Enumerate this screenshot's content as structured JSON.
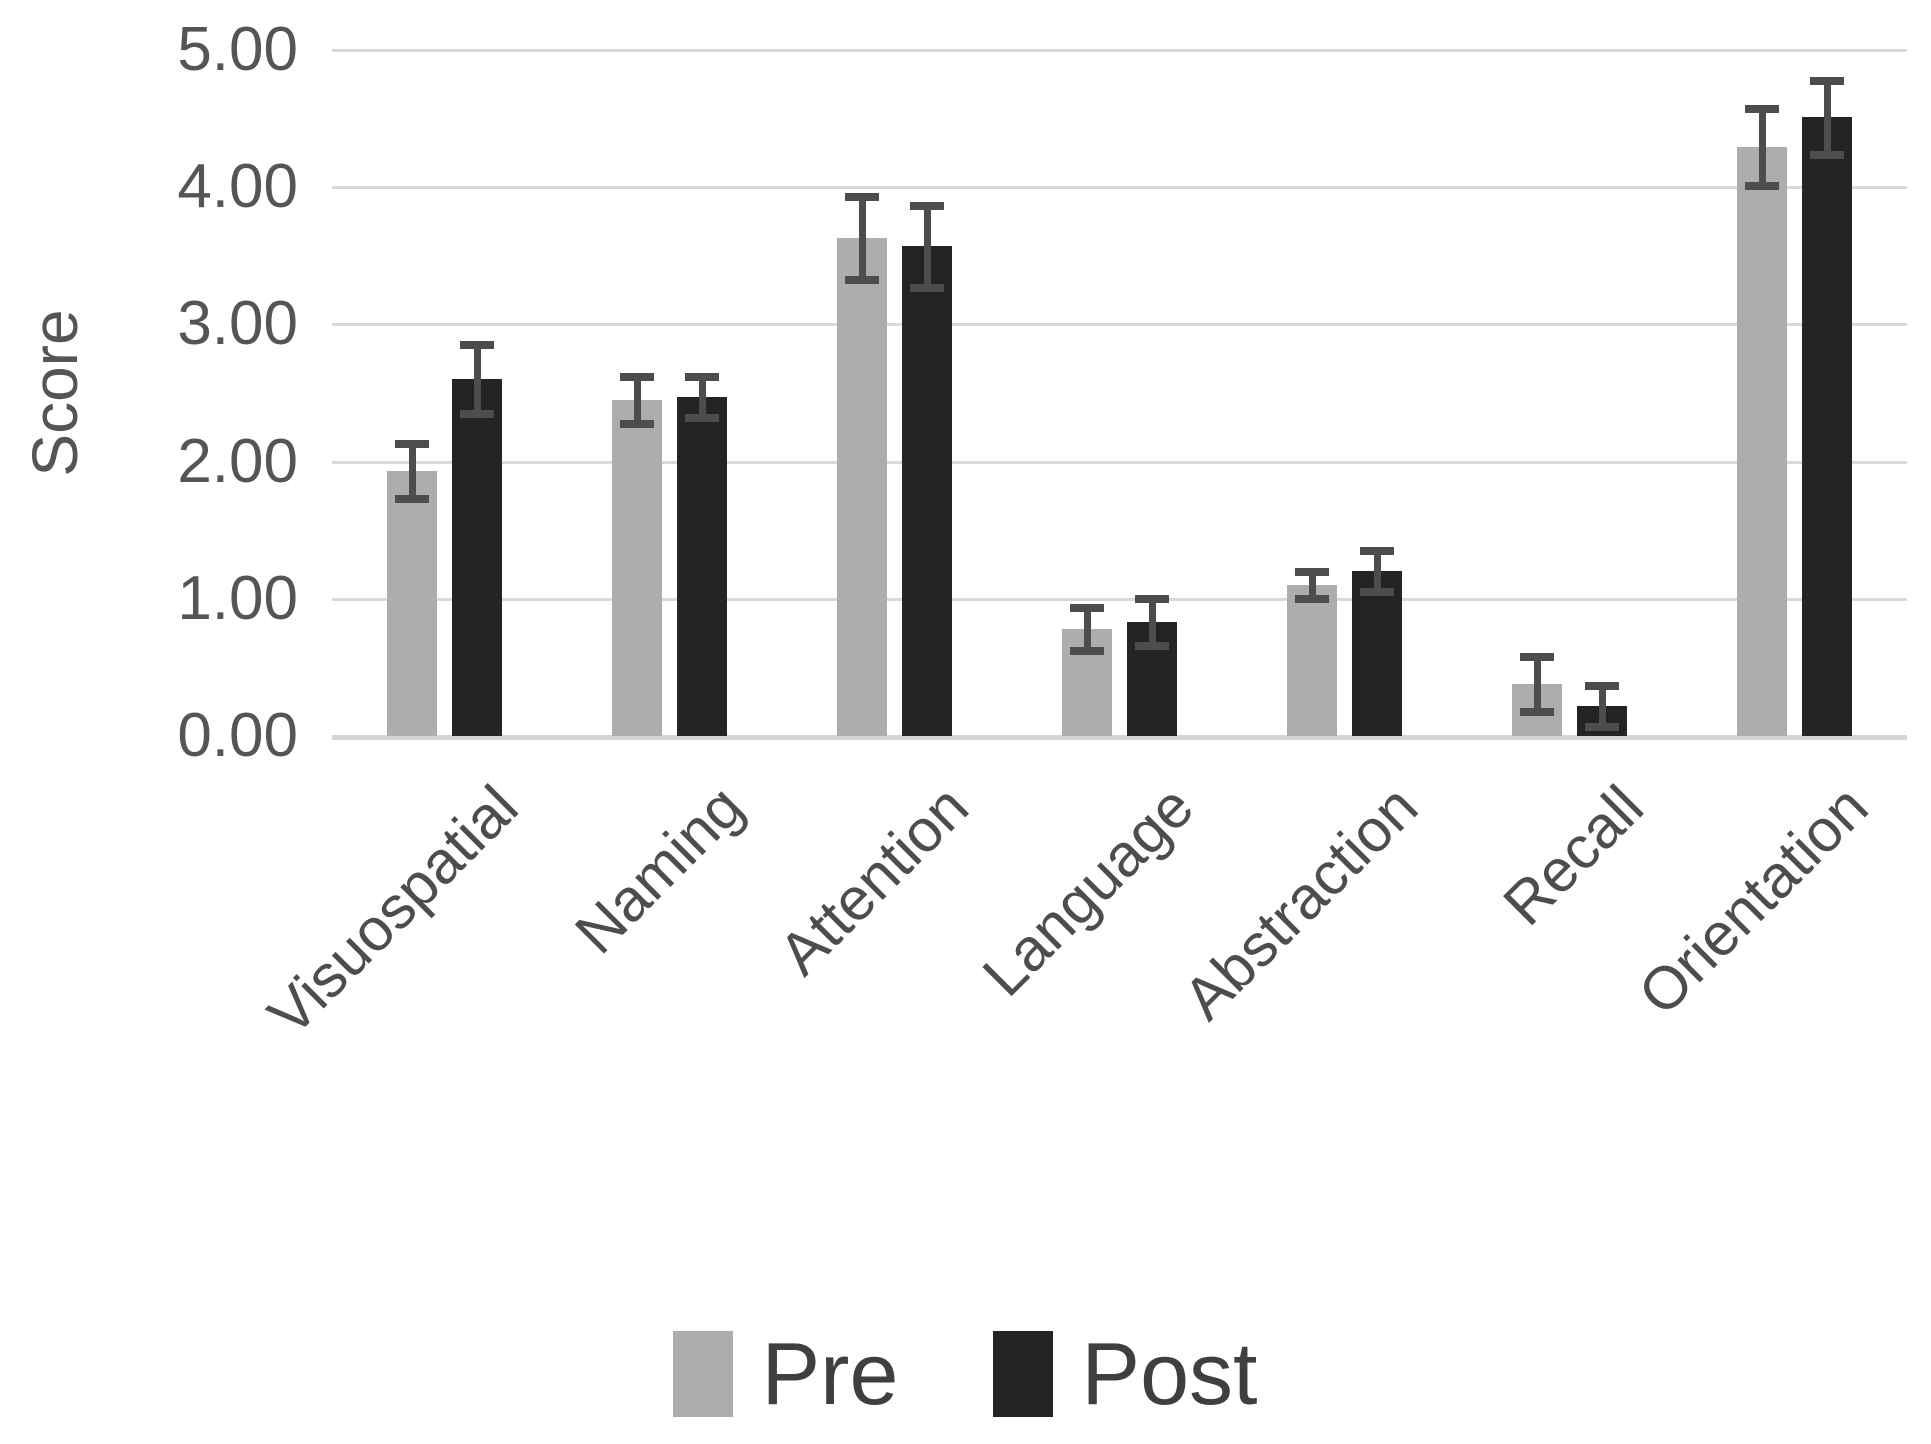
{
  "chart_data": {
    "type": "bar",
    "title": "",
    "xlabel": "",
    "ylabel": "Score",
    "ylim": [
      0,
      5
    ],
    "ytick_step": 1,
    "yticks": [
      "5.00",
      "4.00",
      "3.00",
      "2.00",
      "1.00",
      "0.00"
    ],
    "grid": "horizontal",
    "legend_position": "bottom",
    "categories": [
      "Visuospatial",
      "Naming",
      "Attention",
      "Language",
      "Abstraction",
      "Recall",
      "Orientation"
    ],
    "series": [
      {
        "name": "Pre",
        "color": "#adadad",
        "values": [
          1.93,
          2.45,
          3.63,
          0.78,
          1.1,
          0.38,
          4.29
        ],
        "errors": [
          0.2,
          0.17,
          0.3,
          0.16,
          0.1,
          0.2,
          0.28
        ]
      },
      {
        "name": "Post",
        "color": "#242424",
        "values": [
          2.6,
          2.47,
          3.57,
          0.83,
          1.2,
          0.22,
          4.51
        ],
        "errors": [
          0.25,
          0.15,
          0.3,
          0.17,
          0.15,
          0.15,
          0.27
        ]
      }
    ],
    "error_bar_color": "#4d4d4d",
    "gridline_color": "#d9d9d9"
  }
}
